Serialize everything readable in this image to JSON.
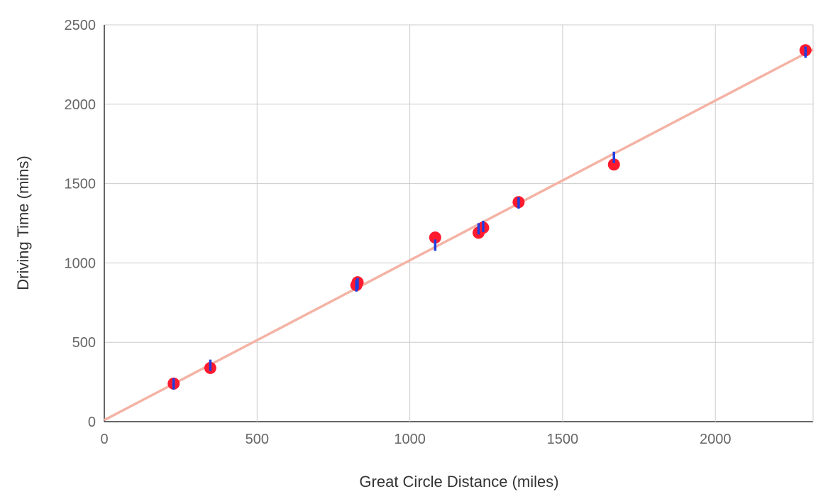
{
  "chart_data": {
    "type": "scatter",
    "xlabel": "Great Circle Distance (miles)",
    "ylabel": "Driving Time (mins)",
    "xlim": [
      0,
      2320
    ],
    "ylim": [
      0,
      2500
    ],
    "x_ticks": [
      0,
      500,
      1000,
      1500,
      2000
    ],
    "y_ticks": [
      0,
      500,
      1000,
      1500,
      2000,
      2500
    ],
    "grid": true,
    "legend": "none",
    "series": [
      {
        "role": "observed",
        "color": "#ff1a2e",
        "points": [
          {
            "x": 227,
            "y": 240
          },
          {
            "x": 347,
            "y": 338
          },
          {
            "x": 825,
            "y": 860
          },
          {
            "x": 829,
            "y": 878
          },
          {
            "x": 1083,
            "y": 1160
          },
          {
            "x": 1225,
            "y": 1190
          },
          {
            "x": 1240,
            "y": 1222
          },
          {
            "x": 1356,
            "y": 1383
          },
          {
            "x": 1668,
            "y": 1620
          },
          {
            "x": 2295,
            "y": 2340
          }
        ]
      },
      {
        "role": "predicted",
        "color": "#1f3fe0",
        "points": [
          {
            "x": 227,
            "y": 238
          },
          {
            "x": 347,
            "y": 355
          },
          {
            "x": 825,
            "y": 855
          },
          {
            "x": 829,
            "y": 870
          },
          {
            "x": 1083,
            "y": 1112
          },
          {
            "x": 1225,
            "y": 1215
          },
          {
            "x": 1240,
            "y": 1230
          },
          {
            "x": 1356,
            "y": 1378
          },
          {
            "x": 1668,
            "y": 1665
          },
          {
            "x": 2295,
            "y": 2328
          }
        ]
      },
      {
        "role": "trendline",
        "type": "line",
        "color": "#f4b3a5",
        "x": [
          0,
          2320
        ],
        "y": [
          10,
          2345
        ]
      }
    ]
  }
}
